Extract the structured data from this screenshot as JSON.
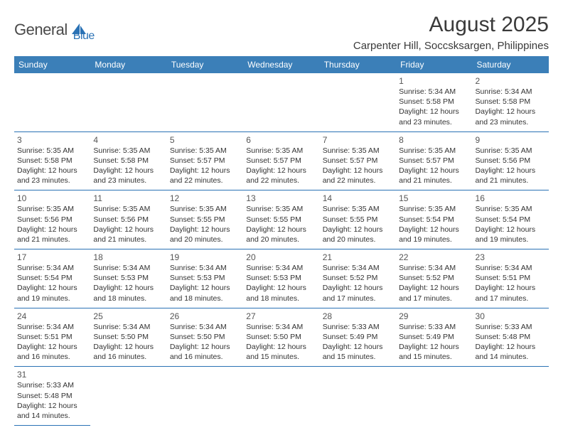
{
  "logo": {
    "part1": "General",
    "part2": "Blue"
  },
  "title": "August 2025",
  "location": "Carpenter Hill, Soccsksargen, Philippines",
  "header_bg": "#3b7fb8",
  "header_fg": "#ffffff",
  "border_color": "#2a72b5",
  "dayHeaders": [
    "Sunday",
    "Monday",
    "Tuesday",
    "Wednesday",
    "Thursday",
    "Friday",
    "Saturday"
  ],
  "weeks": [
    [
      null,
      null,
      null,
      null,
      null,
      {
        "n": "1",
        "sr": "5:34 AM",
        "ss": "5:58 PM",
        "dl": "12 hours and 23 minutes."
      },
      {
        "n": "2",
        "sr": "5:34 AM",
        "ss": "5:58 PM",
        "dl": "12 hours and 23 minutes."
      }
    ],
    [
      {
        "n": "3",
        "sr": "5:35 AM",
        "ss": "5:58 PM",
        "dl": "12 hours and 23 minutes."
      },
      {
        "n": "4",
        "sr": "5:35 AM",
        "ss": "5:58 PM",
        "dl": "12 hours and 23 minutes."
      },
      {
        "n": "5",
        "sr": "5:35 AM",
        "ss": "5:57 PM",
        "dl": "12 hours and 22 minutes."
      },
      {
        "n": "6",
        "sr": "5:35 AM",
        "ss": "5:57 PM",
        "dl": "12 hours and 22 minutes."
      },
      {
        "n": "7",
        "sr": "5:35 AM",
        "ss": "5:57 PM",
        "dl": "12 hours and 22 minutes."
      },
      {
        "n": "8",
        "sr": "5:35 AM",
        "ss": "5:57 PM",
        "dl": "12 hours and 21 minutes."
      },
      {
        "n": "9",
        "sr": "5:35 AM",
        "ss": "5:56 PM",
        "dl": "12 hours and 21 minutes."
      }
    ],
    [
      {
        "n": "10",
        "sr": "5:35 AM",
        "ss": "5:56 PM",
        "dl": "12 hours and 21 minutes."
      },
      {
        "n": "11",
        "sr": "5:35 AM",
        "ss": "5:56 PM",
        "dl": "12 hours and 21 minutes."
      },
      {
        "n": "12",
        "sr": "5:35 AM",
        "ss": "5:55 PM",
        "dl": "12 hours and 20 minutes."
      },
      {
        "n": "13",
        "sr": "5:35 AM",
        "ss": "5:55 PM",
        "dl": "12 hours and 20 minutes."
      },
      {
        "n": "14",
        "sr": "5:35 AM",
        "ss": "5:55 PM",
        "dl": "12 hours and 20 minutes."
      },
      {
        "n": "15",
        "sr": "5:35 AM",
        "ss": "5:54 PM",
        "dl": "12 hours and 19 minutes."
      },
      {
        "n": "16",
        "sr": "5:35 AM",
        "ss": "5:54 PM",
        "dl": "12 hours and 19 minutes."
      }
    ],
    [
      {
        "n": "17",
        "sr": "5:34 AM",
        "ss": "5:54 PM",
        "dl": "12 hours and 19 minutes."
      },
      {
        "n": "18",
        "sr": "5:34 AM",
        "ss": "5:53 PM",
        "dl": "12 hours and 18 minutes."
      },
      {
        "n": "19",
        "sr": "5:34 AM",
        "ss": "5:53 PM",
        "dl": "12 hours and 18 minutes."
      },
      {
        "n": "20",
        "sr": "5:34 AM",
        "ss": "5:53 PM",
        "dl": "12 hours and 18 minutes."
      },
      {
        "n": "21",
        "sr": "5:34 AM",
        "ss": "5:52 PM",
        "dl": "12 hours and 17 minutes."
      },
      {
        "n": "22",
        "sr": "5:34 AM",
        "ss": "5:52 PM",
        "dl": "12 hours and 17 minutes."
      },
      {
        "n": "23",
        "sr": "5:34 AM",
        "ss": "5:51 PM",
        "dl": "12 hours and 17 minutes."
      }
    ],
    [
      {
        "n": "24",
        "sr": "5:34 AM",
        "ss": "5:51 PM",
        "dl": "12 hours and 16 minutes."
      },
      {
        "n": "25",
        "sr": "5:34 AM",
        "ss": "5:50 PM",
        "dl": "12 hours and 16 minutes."
      },
      {
        "n": "26",
        "sr": "5:34 AM",
        "ss": "5:50 PM",
        "dl": "12 hours and 16 minutes."
      },
      {
        "n": "27",
        "sr": "5:34 AM",
        "ss": "5:50 PM",
        "dl": "12 hours and 15 minutes."
      },
      {
        "n": "28",
        "sr": "5:33 AM",
        "ss": "5:49 PM",
        "dl": "12 hours and 15 minutes."
      },
      {
        "n": "29",
        "sr": "5:33 AM",
        "ss": "5:49 PM",
        "dl": "12 hours and 15 minutes."
      },
      {
        "n": "30",
        "sr": "5:33 AM",
        "ss": "5:48 PM",
        "dl": "12 hours and 14 minutes."
      }
    ],
    [
      {
        "n": "31",
        "sr": "5:33 AM",
        "ss": "5:48 PM",
        "dl": "12 hours and 14 minutes."
      },
      null,
      null,
      null,
      null,
      null,
      null
    ]
  ],
  "labels": {
    "sunrise": "Sunrise: ",
    "sunset": "Sunset: ",
    "daylight": "Daylight: "
  }
}
